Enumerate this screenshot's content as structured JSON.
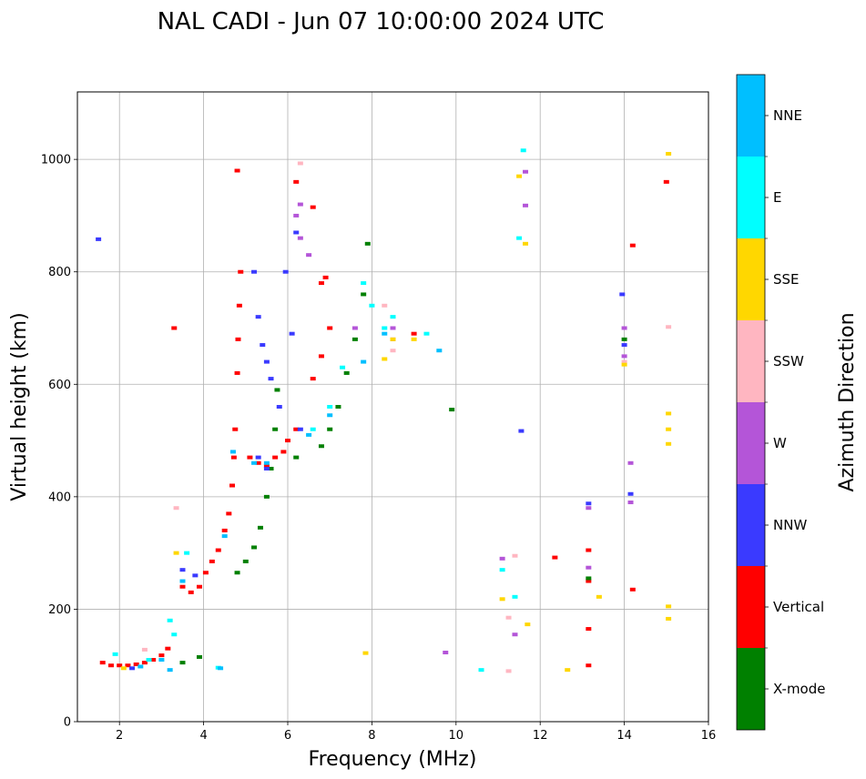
{
  "chart_data": {
    "type": "scatter",
    "title": "NAL CADI - Jun 07 10:00:00 2024 UTC",
    "xlabel": "Frequency (MHz)",
    "ylabel": "Virtual height (km)",
    "xlim": [
      1.0,
      16.0
    ],
    "ylim": [
      0,
      1120
    ],
    "xticks": [
      2,
      4,
      6,
      8,
      10,
      12,
      14,
      16
    ],
    "yticks": [
      0,
      200,
      400,
      600,
      800,
      1000
    ],
    "grid": true,
    "colorbar": {
      "title": "Azimuth Direction",
      "categories": [
        {
          "name": "X-mode",
          "color": "#008000"
        },
        {
          "name": "Vertical",
          "color": "#ff0000"
        },
        {
          "name": "NNW",
          "color": "#3a3aff"
        },
        {
          "name": "W",
          "color": "#b455d8"
        },
        {
          "name": "SSW",
          "color": "#ffb6c1"
        },
        {
          "name": "SSE",
          "color": "#ffd700"
        },
        {
          "name": "E",
          "color": "#00ffff"
        },
        {
          "name": "NNE",
          "color": "#00bfff"
        }
      ]
    },
    "series": [
      {
        "name": "Vertical",
        "points": [
          [
            1.6,
            105
          ],
          [
            1.8,
            100
          ],
          [
            2.0,
            100
          ],
          [
            2.2,
            100
          ],
          [
            2.4,
            102
          ],
          [
            2.6,
            105
          ],
          [
            2.8,
            110
          ],
          [
            3.0,
            118
          ],
          [
            3.15,
            130
          ],
          [
            3.5,
            240
          ],
          [
            3.7,
            230
          ],
          [
            3.9,
            240
          ],
          [
            4.05,
            265
          ],
          [
            4.2,
            285
          ],
          [
            4.35,
            305
          ],
          [
            4.5,
            340
          ],
          [
            4.6,
            370
          ],
          [
            4.68,
            420
          ],
          [
            4.72,
            470
          ],
          [
            4.75,
            520
          ],
          [
            4.8,
            620
          ],
          [
            4.82,
            680
          ],
          [
            4.85,
            740
          ],
          [
            4.88,
            800
          ],
          [
            5.1,
            470
          ],
          [
            5.3,
            460
          ],
          [
            5.5,
            455
          ],
          [
            5.7,
            470
          ],
          [
            5.9,
            480
          ],
          [
            6.0,
            500
          ],
          [
            6.2,
            520
          ],
          [
            6.6,
            610
          ],
          [
            6.8,
            650
          ],
          [
            7.0,
            700
          ],
          [
            6.8,
            780
          ],
          [
            6.2,
            960
          ],
          [
            6.6,
            915
          ],
          [
            6.9,
            790
          ],
          [
            9.0,
            690
          ],
          [
            3.3,
            700
          ],
          [
            4.8,
            980
          ],
          [
            12.35,
            292
          ],
          [
            13.15,
            305
          ],
          [
            13.15,
            250
          ],
          [
            13.15,
            165
          ],
          [
            13.15,
            100
          ],
          [
            14.2,
            235
          ],
          [
            14.2,
            847
          ],
          [
            15.0,
            960
          ]
        ]
      },
      {
        "name": "X-mode",
        "points": [
          [
            3.5,
            105
          ],
          [
            3.9,
            115
          ],
          [
            4.8,
            265
          ],
          [
            5.0,
            285
          ],
          [
            5.2,
            310
          ],
          [
            5.35,
            345
          ],
          [
            5.5,
            400
          ],
          [
            5.6,
            450
          ],
          [
            5.7,
            520
          ],
          [
            5.75,
            590
          ],
          [
            6.2,
            470
          ],
          [
            6.8,
            490
          ],
          [
            7.0,
            520
          ],
          [
            7.2,
            560
          ],
          [
            7.4,
            620
          ],
          [
            7.6,
            680
          ],
          [
            7.8,
            760
          ],
          [
            7.9,
            850
          ],
          [
            9.9,
            555
          ],
          [
            13.15,
            255
          ],
          [
            14.0,
            680
          ]
        ]
      },
      {
        "name": "NNW",
        "points": [
          [
            1.5,
            858
          ],
          [
            2.3,
            95
          ],
          [
            3.5,
            270
          ],
          [
            3.8,
            260
          ],
          [
            5.2,
            800
          ],
          [
            5.3,
            720
          ],
          [
            5.4,
            670
          ],
          [
            5.5,
            640
          ],
          [
            5.6,
            610
          ],
          [
            5.8,
            560
          ],
          [
            5.95,
            800
          ],
          [
            6.1,
            690
          ],
          [
            6.2,
            870
          ],
          [
            6.3,
            520
          ],
          [
            5.3,
            470
          ],
          [
            5.5,
            450
          ],
          [
            11.55,
            517
          ],
          [
            13.15,
            388
          ],
          [
            13.95,
            760
          ],
          [
            14.0,
            670
          ],
          [
            14.15,
            405
          ]
        ]
      },
      {
        "name": "W",
        "points": [
          [
            6.2,
            900
          ],
          [
            6.3,
            920
          ],
          [
            6.3,
            860
          ],
          [
            6.5,
            830
          ],
          [
            7.6,
            700
          ],
          [
            8.5,
            700
          ],
          [
            8.5,
            680
          ],
          [
            11.1,
            290
          ],
          [
            11.4,
            155
          ],
          [
            11.65,
            918
          ],
          [
            11.65,
            978
          ],
          [
            13.15,
            380
          ],
          [
            13.15,
            274
          ],
          [
            14.0,
            700
          ],
          [
            14.0,
            650
          ],
          [
            14.15,
            460
          ],
          [
            14.15,
            390
          ],
          [
            9.75,
            123
          ]
        ]
      },
      {
        "name": "SSW",
        "points": [
          [
            3.35,
            380
          ],
          [
            2.6,
            128
          ],
          [
            6.3,
            993
          ],
          [
            8.3,
            740
          ],
          [
            8.5,
            660
          ],
          [
            11.4,
            295
          ],
          [
            11.25,
            90
          ],
          [
            11.25,
            185
          ],
          [
            14.0,
            640
          ],
          [
            15.05,
            702
          ]
        ]
      },
      {
        "name": "SSE",
        "points": [
          [
            2.1,
            95
          ],
          [
            3.35,
            300
          ],
          [
            7.85,
            122
          ],
          [
            8.5,
            680
          ],
          [
            8.3,
            645
          ],
          [
            9.0,
            680
          ],
          [
            11.1,
            218
          ],
          [
            11.5,
            970
          ],
          [
            11.65,
            850
          ],
          [
            11.7,
            173
          ],
          [
            12.65,
            92
          ],
          [
            13.4,
            222
          ],
          [
            14.0,
            635
          ],
          [
            15.05,
            1010
          ],
          [
            15.05,
            548
          ],
          [
            15.05,
            520
          ],
          [
            15.05,
            494
          ],
          [
            15.05,
            205
          ],
          [
            15.05,
            183
          ]
        ]
      },
      {
        "name": "E",
        "points": [
          [
            1.9,
            120
          ],
          [
            2.7,
            110
          ],
          [
            3.3,
            155
          ],
          [
            3.6,
            300
          ],
          [
            4.35,
            96
          ],
          [
            6.6,
            520
          ],
          [
            7.0,
            560
          ],
          [
            7.3,
            630
          ],
          [
            7.8,
            780
          ],
          [
            8.0,
            740
          ],
          [
            8.3,
            700
          ],
          [
            8.5,
            720
          ],
          [
            9.3,
            690
          ],
          [
            10.6,
            92
          ],
          [
            11.1,
            270
          ],
          [
            11.5,
            860
          ],
          [
            11.6,
            1016
          ],
          [
            11.4,
            222
          ],
          [
            3.2,
            180
          ]
        ]
      },
      {
        "name": "NNE",
        "points": [
          [
            2.5,
            98
          ],
          [
            3.0,
            110
          ],
          [
            3.2,
            92
          ],
          [
            3.5,
            250
          ],
          [
            4.5,
            330
          ],
          [
            4.7,
            480
          ],
          [
            5.2,
            460
          ],
          [
            5.5,
            460
          ],
          [
            6.5,
            510
          ],
          [
            7.0,
            545
          ],
          [
            7.8,
            640
          ],
          [
            8.3,
            690
          ],
          [
            9.6,
            660
          ],
          [
            4.4,
            95
          ]
        ]
      }
    ]
  }
}
